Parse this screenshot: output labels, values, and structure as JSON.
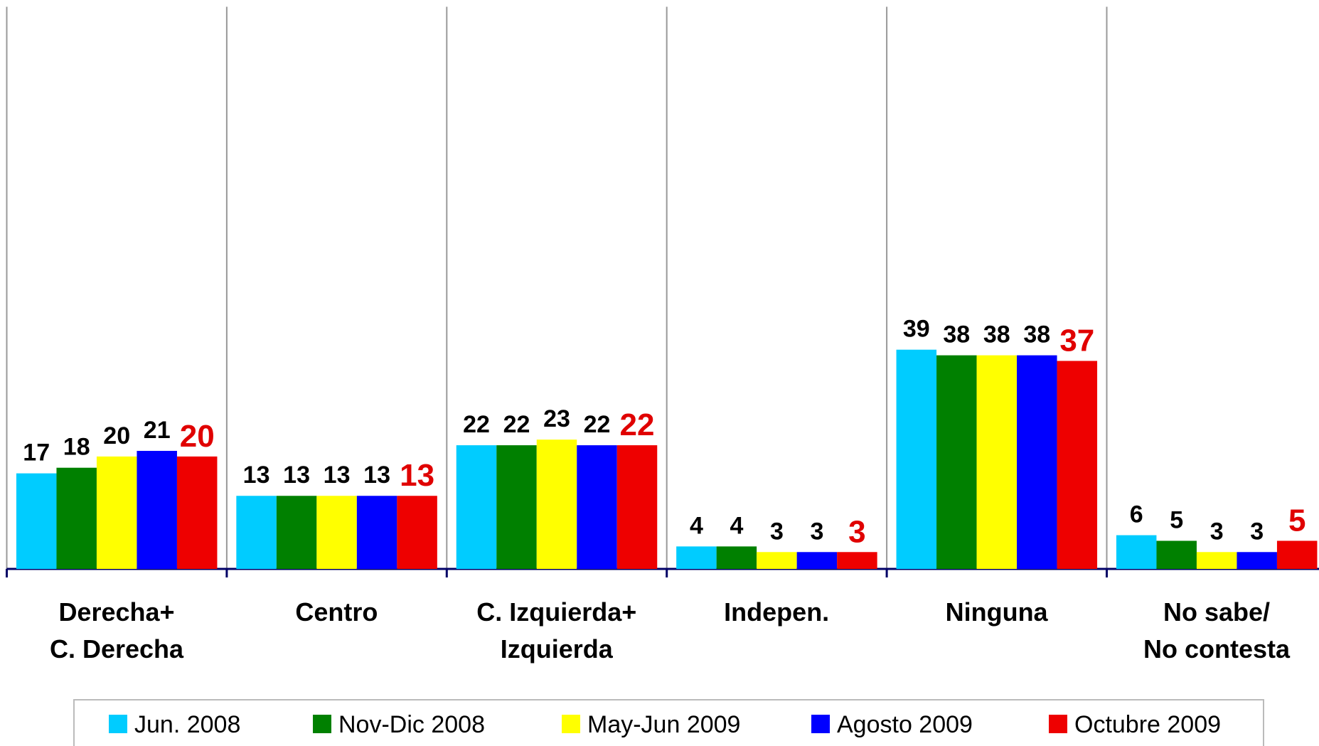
{
  "chart_data": {
    "type": "bar",
    "categories": [
      "Derecha+\nC. Derecha",
      "Centro",
      "C. Izquierda+\nIzquierda",
      "Indepen.",
      "Ninguna",
      "No sabe/\nNo contesta"
    ],
    "series": [
      {
        "name": "Jun. 2008",
        "color": "#00ccff",
        "values": [
          17,
          13,
          22,
          4,
          39,
          6
        ]
      },
      {
        "name": "Nov-Dic 2008",
        "color": "#008000",
        "values": [
          18,
          13,
          22,
          4,
          38,
          5
        ]
      },
      {
        "name": "May-Jun 2009",
        "color": "#ffff00",
        "values": [
          20,
          13,
          23,
          3,
          38,
          3
        ]
      },
      {
        "name": "Agosto 2009",
        "color": "#0000ff",
        "values": [
          21,
          13,
          22,
          3,
          38,
          3
        ]
      },
      {
        "name": "Octubre 2009",
        "color": "#ee0000",
        "label_color": "#e00000",
        "values": [
          20,
          13,
          22,
          3,
          37,
          5
        ]
      }
    ],
    "ylim": [
      0,
      100
    ],
    "legend": "bottom"
  }
}
